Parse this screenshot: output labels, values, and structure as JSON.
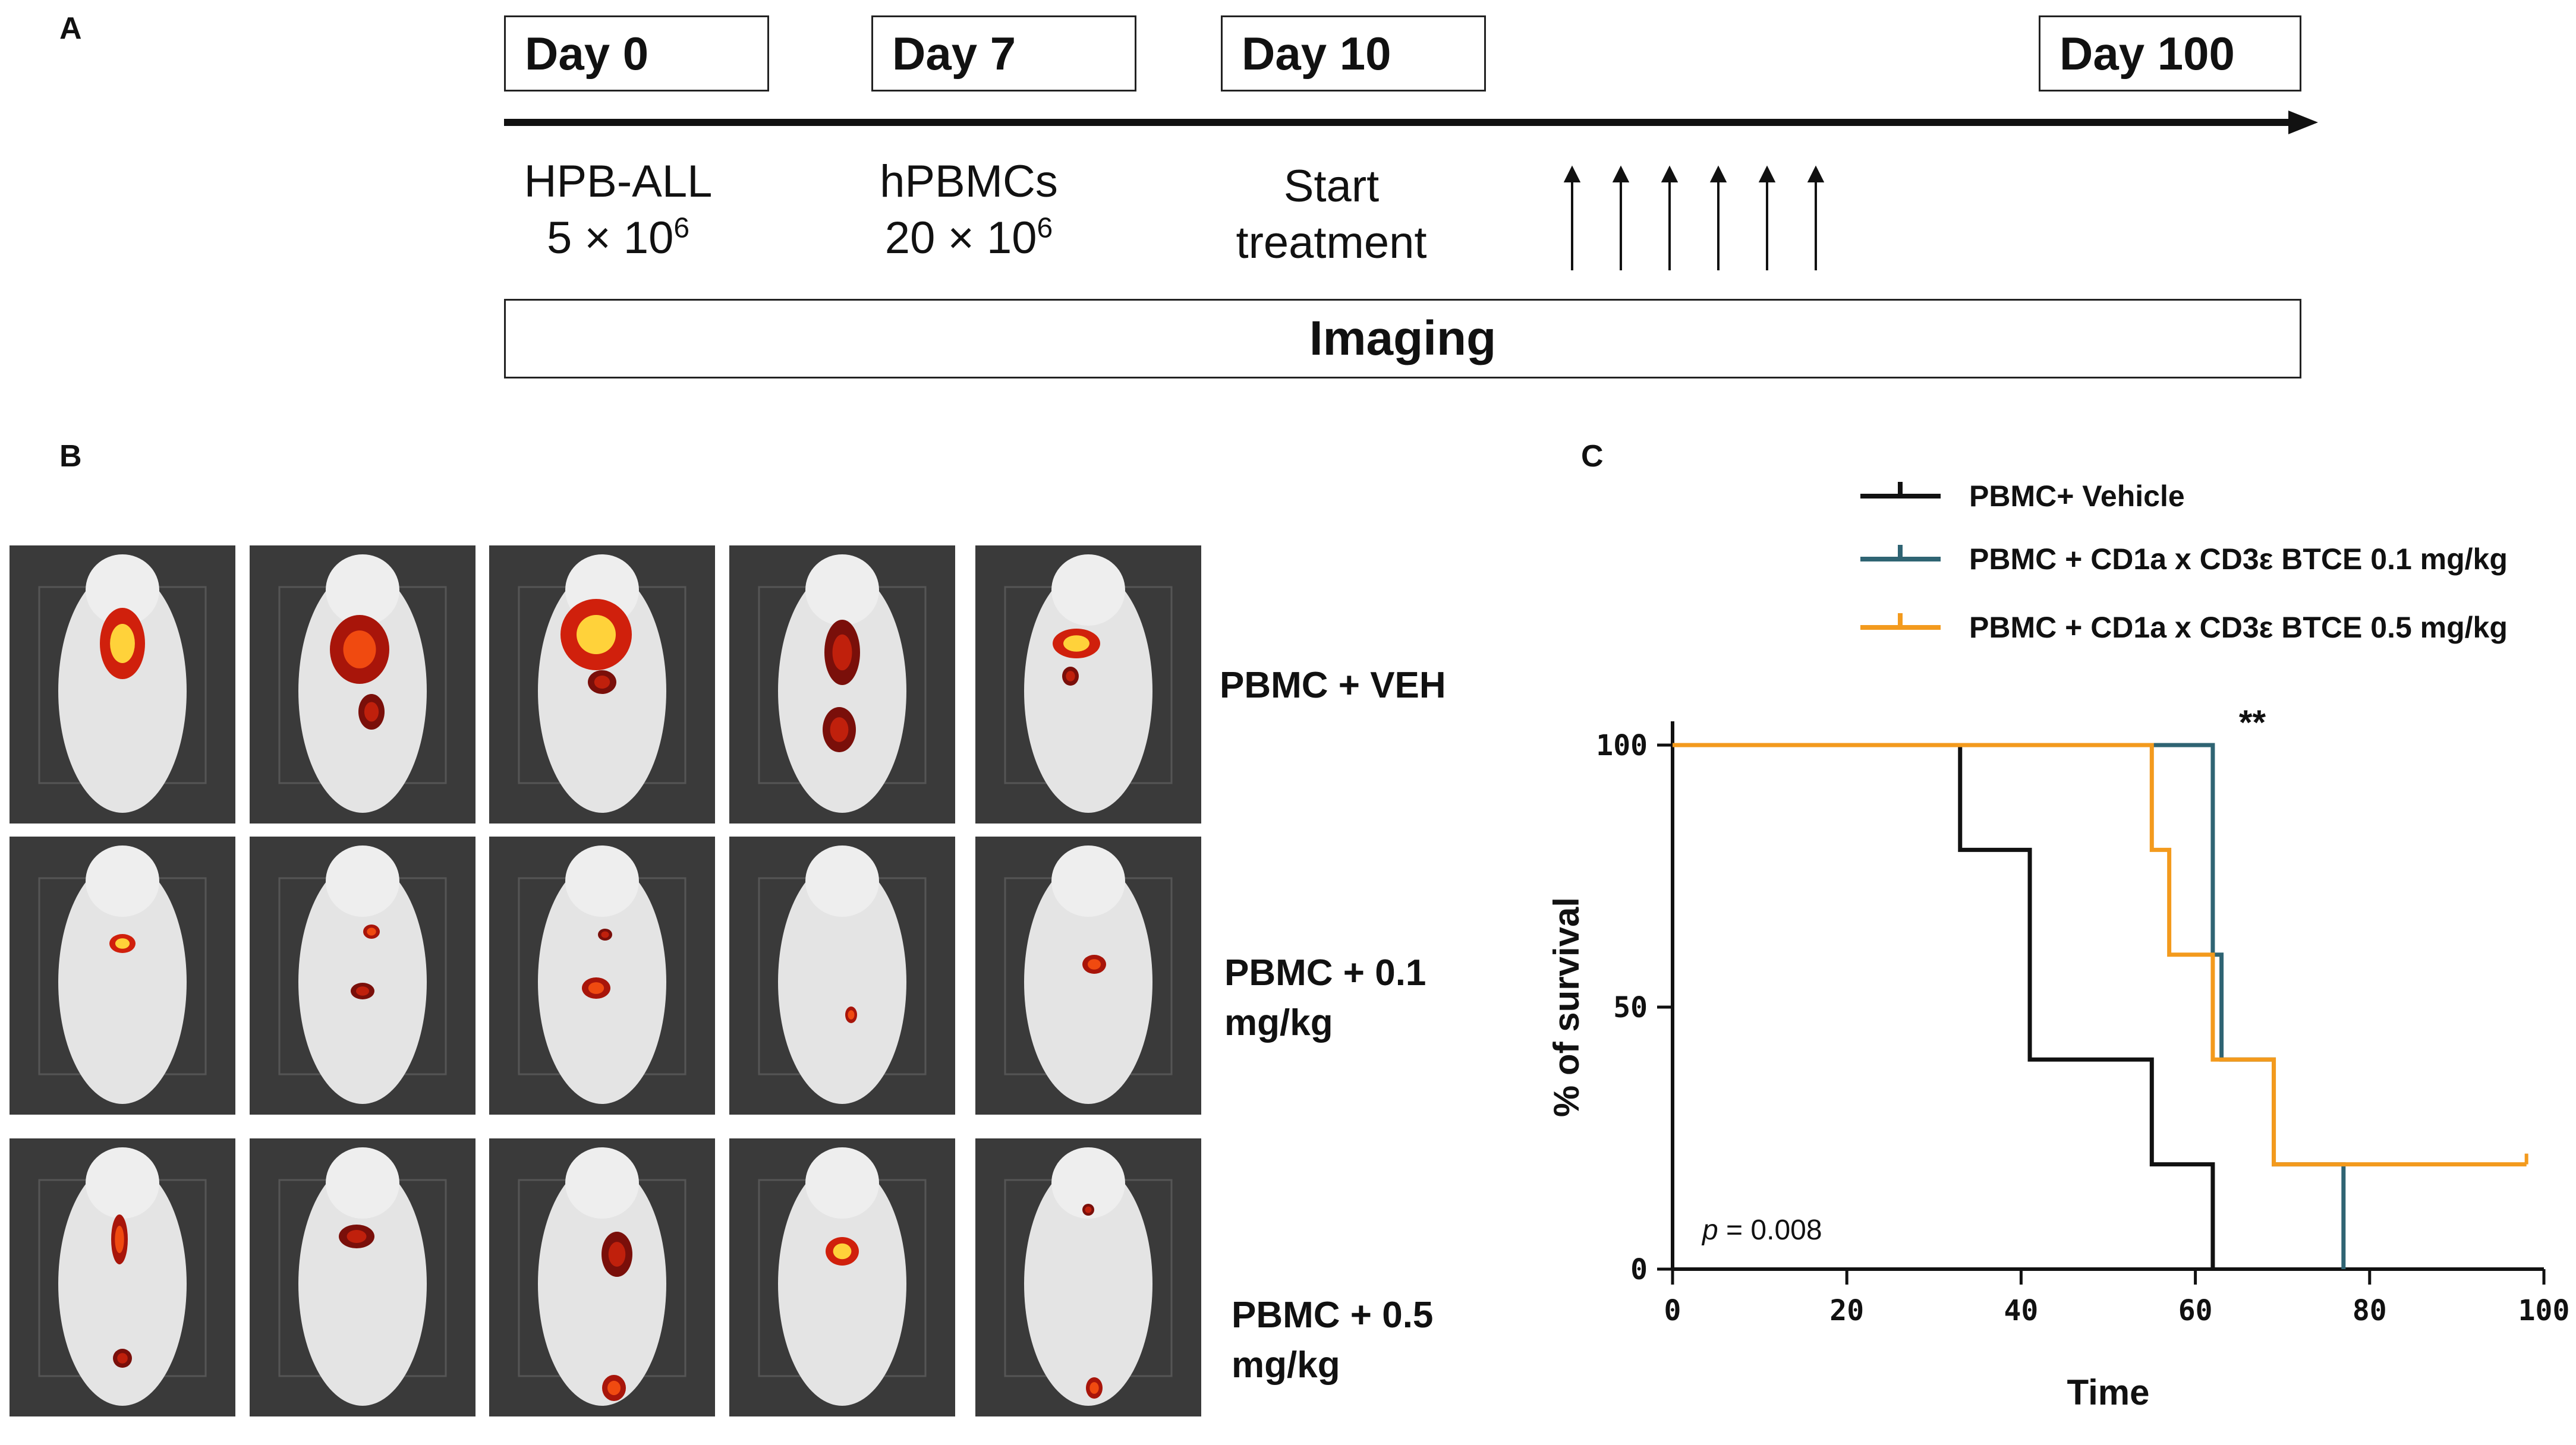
{
  "panel_a": {
    "label": "A",
    "days": [
      "Day 0",
      "Day 7",
      "Day 10",
      "Day 100"
    ],
    "events": {
      "day0_line1": "HPB-ALL",
      "day0_line2": "5 × 10",
      "day0_sup": "6",
      "day7_line1": "hPBMCs",
      "day7_line2": "20 × 10",
      "day7_sup": "6",
      "day10_line1": "Start",
      "day10_line2": "treatment"
    },
    "imaging_label": "Imaging"
  },
  "panel_b": {
    "label": "B",
    "rows": [
      {
        "label_line1": "PBMC + VEH",
        "label_line2": ""
      },
      {
        "label_line1": "PBMC + 0.1",
        "label_line2": "mg/kg"
      },
      {
        "label_line1": "PBMC + 0.5",
        "label_line2": "mg/kg"
      }
    ]
  },
  "panel_c": {
    "label": "C",
    "significance": "**",
    "p_label": "p",
    "p_value": " = 0.008"
  },
  "colors": {
    "vehicle": "#111111",
    "dose_01": "#2f6473",
    "dose_05": "#f39a1d"
  },
  "chart_data": {
    "type": "line",
    "subtype": "kaplan-meier step",
    "title": "",
    "xlabel": "Time",
    "ylabel": "% of survival",
    "xlim": [
      0,
      100
    ],
    "ylim": [
      0,
      100
    ],
    "xticks": [
      0,
      20,
      40,
      60,
      80,
      100
    ],
    "yticks": [
      0,
      50,
      100
    ],
    "legend_position": "top",
    "series": [
      {
        "name": "PBMC+ Vehicle",
        "color": "#111111",
        "x": [
          0,
          33,
          41,
          55,
          62
        ],
        "y": [
          100,
          80,
          40,
          20,
          0
        ]
      },
      {
        "name": "PBMC + CD1a x CD3ε BTCE 0.1 mg/kg",
        "color": "#2f6473",
        "x": [
          0,
          62,
          63,
          69,
          77
        ],
        "y": [
          100,
          60,
          40,
          20,
          0
        ]
      },
      {
        "name": "PBMC + CD1a x CD3ε BTCE 0.5 mg/kg",
        "color": "#f39a1d",
        "x": [
          0,
          55,
          57,
          62,
          69,
          98
        ],
        "y": [
          100,
          80,
          60,
          40,
          20,
          20
        ]
      }
    ],
    "annotations": [
      "**",
      "p = 0.008"
    ]
  }
}
